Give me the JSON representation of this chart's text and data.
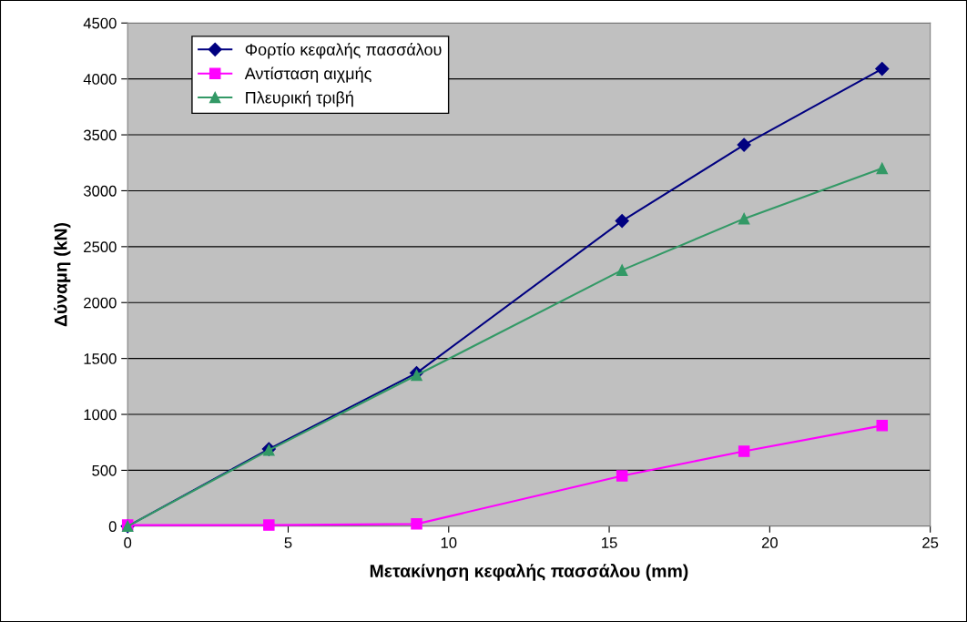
{
  "chart_data": {
    "type": "line",
    "xlabel": "Μετακίνηση κεφαλής πασσάλου (mm)",
    "ylabel": "Δύναμη (kN)",
    "series": [
      {
        "name": "Φορτίο κεφαλής πασσάλου",
        "color": "#000080",
        "marker": "diamond",
        "x": [
          0,
          4.4,
          9.0,
          15.4,
          19.2,
          23.5
        ],
        "values": [
          0,
          690,
          1370,
          2730,
          3410,
          4090
        ]
      },
      {
        "name": "Αντίσταση αιχμής",
        "color": "#ff00ff",
        "marker": "square",
        "x": [
          0,
          4.4,
          9.0,
          15.4,
          19.2,
          23.5
        ],
        "values": [
          10,
          10,
          20,
          450,
          670,
          900
        ]
      },
      {
        "name": "Πλευρική τριβή",
        "color": "#339966",
        "marker": "triangle",
        "x": [
          0,
          4.4,
          9.0,
          15.4,
          19.2,
          23.5
        ],
        "values": [
          0,
          680,
          1350,
          2290,
          2750,
          3200
        ]
      }
    ],
    "xlim": [
      0,
      25
    ],
    "xticks": [
      0,
      5,
      10,
      15,
      20,
      25
    ],
    "ylim": [
      0,
      4500
    ],
    "yticks": [
      0,
      500,
      1000,
      1500,
      2000,
      2500,
      3000,
      3500,
      4000,
      4500
    ],
    "grid": "y",
    "legend": "top left",
    "line_style": "solid"
  }
}
